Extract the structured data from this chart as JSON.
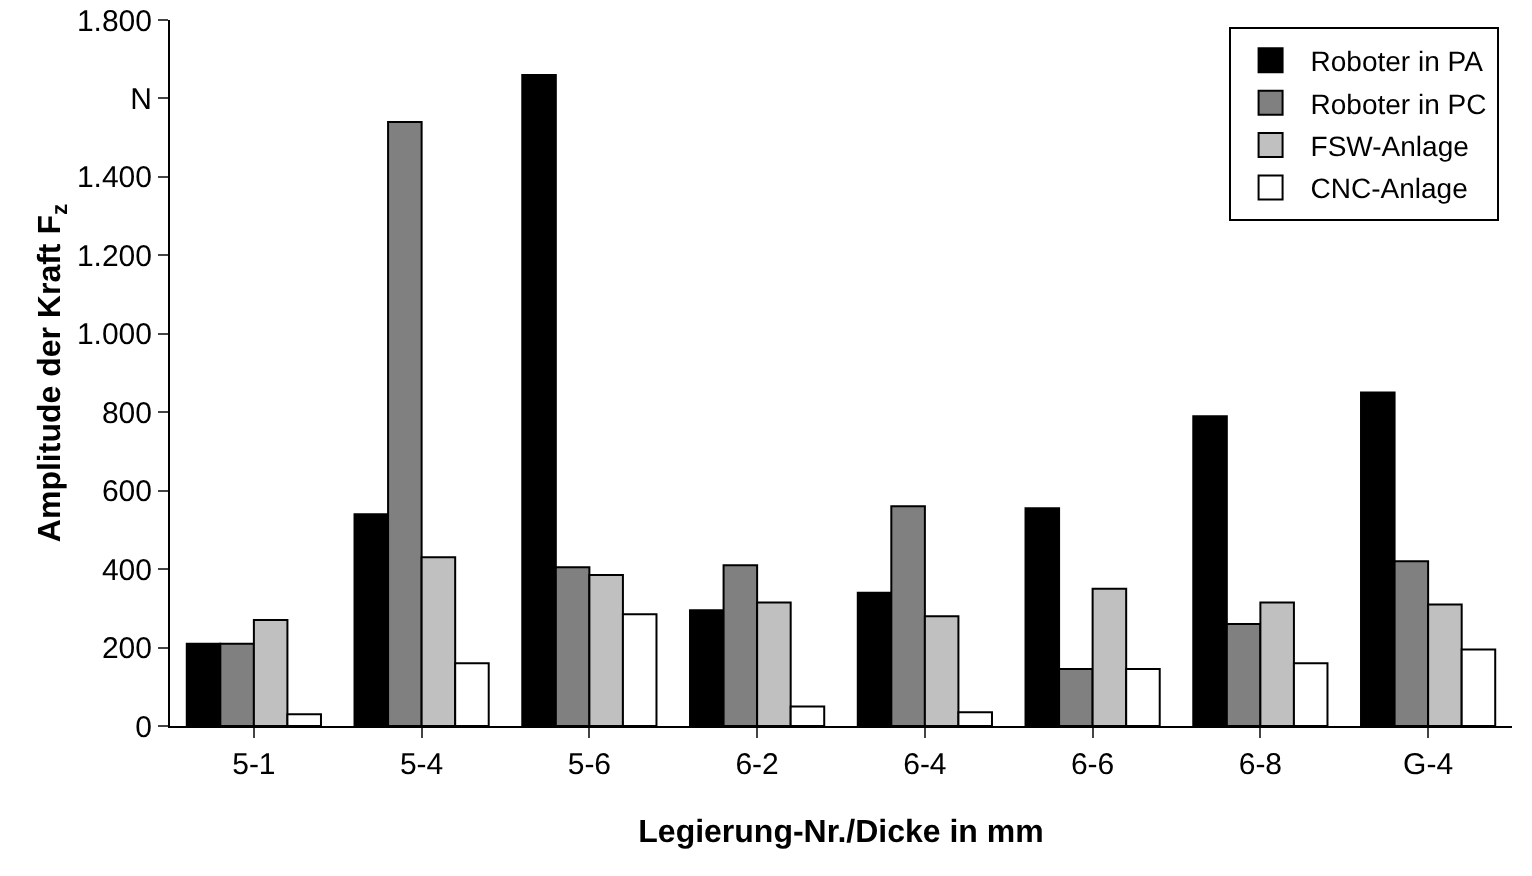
{
  "chart_data": {
    "type": "bar",
    "xlabel": "Legierung-Nr./Dicke in mm",
    "ylabel": "Amplitude der Kraft F$_{z}$",
    "categories": [
      "5-1",
      "5-4",
      "5-6",
      "6-2",
      "6-4",
      "6-6",
      "6-8",
      "G-4"
    ],
    "series": [
      {
        "name": "Roboter in PA",
        "color": "#000000",
        "values": [
          210,
          540,
          1660,
          295,
          340,
          555,
          790,
          850
        ]
      },
      {
        "name": "Roboter in PC",
        "color": "#808080",
        "values": [
          210,
          1540,
          405,
          410,
          560,
          145,
          260,
          420
        ]
      },
      {
        "name": "FSW-Anlage",
        "color": "#c0c0c0",
        "values": [
          270,
          430,
          385,
          315,
          280,
          350,
          315,
          310
        ]
      },
      {
        "name": "CNC-Anlage",
        "color": "#ffffff",
        "values": [
          30,
          160,
          285,
          50,
          35,
          145,
          160,
          195
        ]
      }
    ],
    "ylim": [
      0,
      1800
    ],
    "yticks": [
      {
        "value": 0,
        "label": "0"
      },
      {
        "value": 200,
        "label": "200"
      },
      {
        "value": 400,
        "label": "400"
      },
      {
        "value": 600,
        "label": "600"
      },
      {
        "value": 800,
        "label": "800"
      },
      {
        "value": 1000,
        "label": "1.000"
      },
      {
        "value": 1200,
        "label": "1.200"
      },
      {
        "value": 1400,
        "label": "1.400"
      },
      {
        "value": 1600,
        "label": "N"
      },
      {
        "value": 1800,
        "label": "1.800"
      }
    ],
    "grid": false,
    "legend": "top right"
  }
}
